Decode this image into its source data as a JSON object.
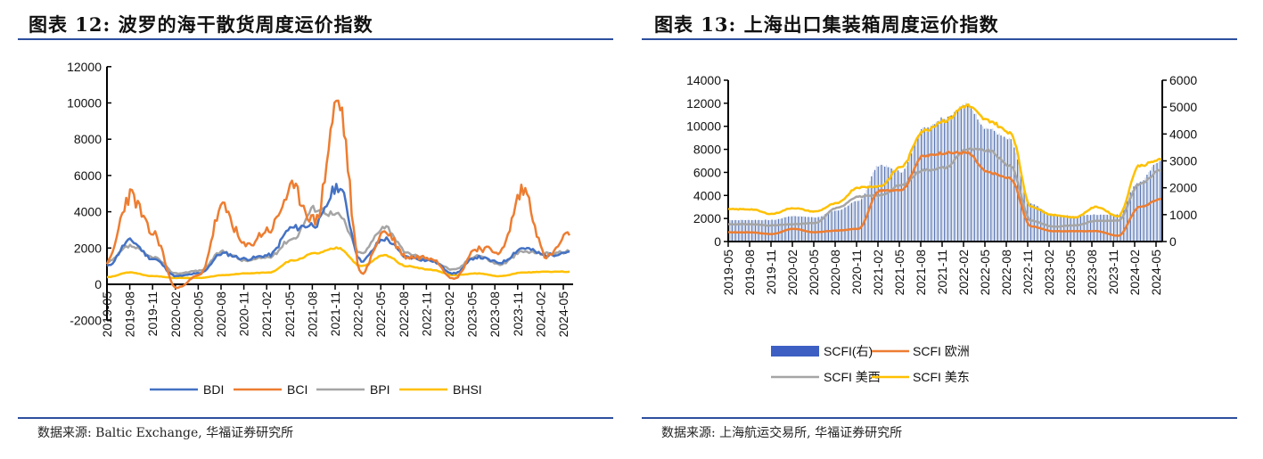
{
  "left_panel": {
    "title": "图表 12:  波罗的海干散货周度运价指数",
    "source": "数据来源:  Baltic Exchange,  华福证券研究所"
  },
  "right_panel": {
    "title": "图表 13:  上海出口集装箱周度运价指数",
    "source": "数据来源:  上海航运交易所,  华福证券研究所"
  },
  "colors": {
    "rule": "#2d4f9e",
    "BDI": "#4472c4",
    "BCI": "#ed7d31",
    "BPI": "#a5a5a5",
    "BHSI": "#ffc000",
    "SCFI_bar": "#3f5fa8",
    "SCFI_bar_light": "#c5d1e4",
    "SCFI_EU": "#ed7d31",
    "SCFI_USW": "#a5a5a5",
    "SCFI_USE": "#ffc000"
  },
  "chart_data": [
    {
      "type": "line",
      "title": "波罗的海干散货周度运价指数",
      "xlabel": "",
      "ylabel": "",
      "ylim": [
        -2000,
        12000
      ],
      "yticks": [
        -2000,
        0,
        2000,
        4000,
        6000,
        8000,
        10000,
        12000
      ],
      "x": [
        "2019-05",
        "2019-08",
        "2019-11",
        "2020-02",
        "2020-05",
        "2020-08",
        "2020-11",
        "2021-02",
        "2021-05",
        "2021-08",
        "2021-11",
        "2022-02",
        "2022-05",
        "2022-08",
        "2022-11",
        "2023-02",
        "2023-05",
        "2023-08",
        "2023-11",
        "2024-02",
        "2024-05"
      ],
      "legend_position": "bottom",
      "grid": false,
      "series": [
        {
          "name": "BDI",
          "values": [
            1000,
            2400,
            1400,
            450,
            600,
            1700,
            1400,
            1600,
            3100,
            3300,
            5400,
            1300,
            2500,
            1500,
            1300,
            600,
            1500,
            1200,
            2000,
            1600,
            1800
          ]
        },
        {
          "name": "BCI",
          "values": [
            1200,
            4900,
            2800,
            -200,
            500,
            4200,
            2100,
            3000,
            5200,
            3500,
            10000,
            600,
            2900,
            1500,
            1500,
            300,
            2000,
            1800,
            5200,
            1500,
            2700
          ]
        },
        {
          "name": "BPI",
          "values": [
            1200,
            2100,
            1500,
            600,
            750,
            1800,
            1300,
            1500,
            2500,
            4200,
            3800,
            1700,
            3200,
            1700,
            1300,
            800,
            1600,
            1100,
            1800,
            1700,
            1800
          ]
        },
        {
          "name": "BHSI",
          "values": [
            400,
            650,
            450,
            350,
            350,
            500,
            600,
            650,
            1300,
            1700,
            2000,
            1000,
            1600,
            1000,
            800,
            500,
            600,
            450,
            650,
            700,
            700
          ]
        }
      ]
    },
    {
      "type": "bar+line",
      "title": "上海出口集装箱周度运价指数",
      "xlabel": "",
      "ylabel": "",
      "ylim": [
        0,
        14000
      ],
      "yticks": [
        0,
        2000,
        4000,
        6000,
        8000,
        10000,
        12000,
        14000
      ],
      "y2lim": [
        0,
        6000
      ],
      "y2ticks": [
        0,
        1000,
        2000,
        3000,
        4000,
        5000,
        6000
      ],
      "x": [
        "2019-05",
        "2019-08",
        "2019-11",
        "2020-02",
        "2020-05",
        "2020-08",
        "2020-11",
        "2021-02",
        "2021-05",
        "2021-08",
        "2021-11",
        "2022-02",
        "2022-05",
        "2022-08",
        "2022-11",
        "2023-02",
        "2023-05",
        "2023-08",
        "2023-11",
        "2024-02",
        "2024-05"
      ],
      "legend_position": "bottom",
      "grid": false,
      "series": [
        {
          "name": "SCFI(右)",
          "axis": "right",
          "kind": "bar",
          "values": [
            800,
            800,
            800,
            950,
            900,
            1150,
            1500,
            2850,
            2600,
            4200,
            4600,
            5100,
            4200,
            3800,
            1400,
            1000,
            950,
            1000,
            1000,
            2200,
            3000
          ]
        },
        {
          "name": "SCFI 欧洲",
          "axis": "left",
          "kind": "line",
          "values": [
            800,
            800,
            650,
            1100,
            800,
            950,
            1100,
            4400,
            4500,
            7400,
            7700,
            7700,
            6000,
            5500,
            1300,
            900,
            900,
            900,
            500,
            3000,
            3700
          ]
        },
        {
          "name": "SCFI 美西",
          "axis": "left",
          "kind": "line",
          "values": [
            1500,
            1500,
            1400,
            1500,
            1600,
            2900,
            3900,
            4000,
            4900,
            6200,
            6400,
            8000,
            7900,
            6600,
            1800,
            1300,
            1400,
            1800,
            1800,
            5000,
            6200
          ]
        },
        {
          "name": "SCFI 美东",
          "axis": "left",
          "kind": "line",
          "values": [
            2800,
            2800,
            2400,
            2900,
            2600,
            3300,
            4700,
            4800,
            6500,
            9600,
            10500,
            11800,
            10500,
            9500,
            3000,
            2300,
            2100,
            3000,
            2200,
            6600,
            7100
          ]
        }
      ]
    }
  ],
  "legend_left": {
    "items": [
      {
        "label": "BDI"
      },
      {
        "label": "BCI"
      },
      {
        "label": "BPI"
      },
      {
        "label": "BHSI"
      }
    ]
  },
  "legend_right": {
    "items": [
      {
        "label": "SCFI(右)"
      },
      {
        "label": "SCFI 欧洲"
      },
      {
        "label": "SCFI 美西"
      },
      {
        "label": "SCFI 美东"
      }
    ]
  }
}
